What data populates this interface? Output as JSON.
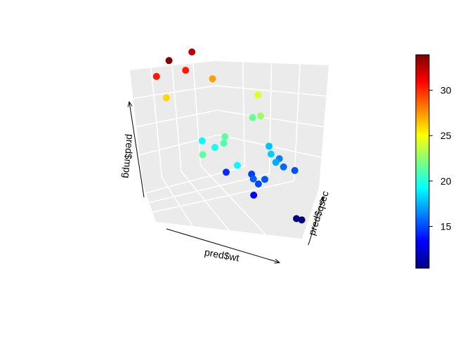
{
  "chart_data": {
    "type": "scatter3d",
    "axes": {
      "x": "pred$wt",
      "y": "pred$qsec",
      "z": "pred$mpg"
    },
    "colorkey": {
      "palette": [
        "#00007F",
        "#0000FF",
        "#007FFF",
        "#00FFFF",
        "#7FFF7F",
        "#FFFF00",
        "#FF7F00",
        "#FF0000",
        "#7F0000"
      ],
      "range": [
        10.4,
        33.9
      ],
      "ticks": [
        15,
        20,
        25,
        30
      ],
      "tick_labels": [
        "15",
        "20",
        "25",
        "30"
      ]
    },
    "grid": true,
    "points": [
      {
        "wt": 1.7,
        "qsec": 16.5,
        "mpg": 33.9
      },
      {
        "wt": 2.0,
        "qsec": 18.0,
        "mpg": 32.4
      },
      {
        "wt": 1.4,
        "qsec": 16.8,
        "mpg": 30.4
      },
      {
        "wt": 1.9,
        "qsec": 17.5,
        "mpg": 30.4
      },
      {
        "wt": 2.3,
        "qsec": 18.5,
        "mpg": 27.3
      },
      {
        "wt": 1.5,
        "qsec": 17.3,
        "mpg": 26.0
      },
      {
        "wt": 3.1,
        "qsec": 19.0,
        "mpg": 24.4
      },
      {
        "wt": 2.6,
        "qsec": 16.7,
        "mpg": 21.0
      },
      {
        "wt": 2.3,
        "qsec": 15.5,
        "mpg": 21.4
      },
      {
        "wt": 3.2,
        "qsec": 18.2,
        "mpg": 22.8
      },
      {
        "wt": 2.6,
        "qsec": 17.0,
        "mpg": 21.4
      },
      {
        "wt": 3.0,
        "qsec": 18.6,
        "mpg": 21.5
      },
      {
        "wt": 2.4,
        "qsec": 16.9,
        "mpg": 19.7
      },
      {
        "wt": 2.9,
        "qsec": 16.0,
        "mpg": 19.2
      },
      {
        "wt": 2.1,
        "qsec": 17.5,
        "mpg": 19.2
      },
      {
        "wt": 3.4,
        "qsec": 17.6,
        "mpg": 18.1
      },
      {
        "wt": 3.3,
        "qsec": 18.3,
        "mpg": 17.8
      },
      {
        "wt": 3.5,
        "qsec": 17.4,
        "mpg": 17.3
      },
      {
        "wt": 3.5,
        "qsec": 18.1,
        "mpg": 16.4
      },
      {
        "wt": 3.6,
        "qsec": 17.8,
        "mpg": 15.8
      },
      {
        "wt": 3.1,
        "qsec": 16.8,
        "mpg": 15.5
      },
      {
        "wt": 3.3,
        "qsec": 17.0,
        "mpg": 15.2
      },
      {
        "wt": 3.2,
        "qsec": 16.7,
        "mpg": 15.0
      },
      {
        "wt": 3.8,
        "qsec": 17.9,
        "mpg": 15.2
      },
      {
        "wt": 3.0,
        "qsec": 17.5,
        "mpg": 14.7
      },
      {
        "wt": 2.5,
        "qsec": 17.6,
        "mpg": 14.3
      },
      {
        "wt": 3.1,
        "qsec": 16.6,
        "mpg": 13.3
      },
      {
        "wt": 3.9,
        "qsec": 16.5,
        "mpg": 10.5
      },
      {
        "wt": 4.0,
        "qsec": 16.5,
        "mpg": 10.4
      }
    ]
  }
}
